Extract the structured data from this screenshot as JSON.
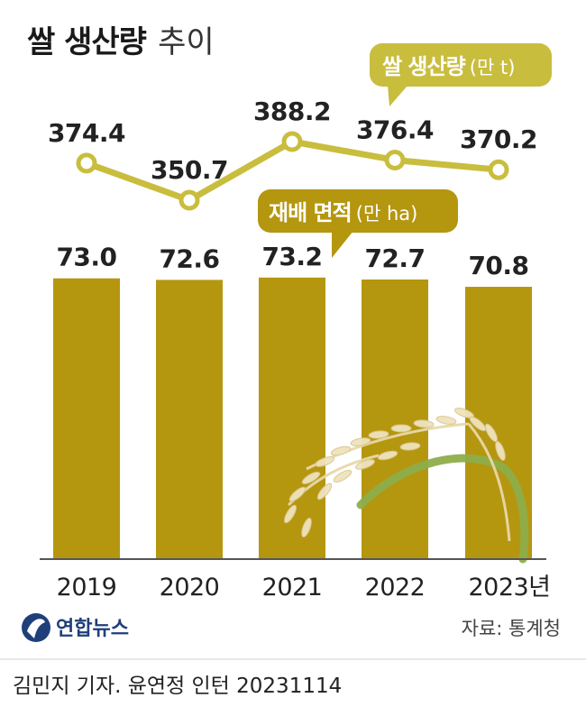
{
  "title": {
    "main": "쌀 생산량",
    "sub": "추이"
  },
  "chart_data": [
    {
      "type": "line",
      "title": "쌀 생산량",
      "unit": "(만 t)",
      "categories": [
        "2019",
        "2020",
        "2021",
        "2022",
        "2023"
      ],
      "values": [
        374.4,
        350.7,
        388.2,
        376.4,
        370.2
      ],
      "color": "#c9bd3e"
    },
    {
      "type": "bar",
      "title": "재배 면적",
      "unit": "(만 ha)",
      "categories": [
        "2019",
        "2020",
        "2021",
        "2022",
        "2023"
      ],
      "values": [
        73.0,
        72.6,
        73.2,
        72.7,
        70.8
      ],
      "color": "#b5960f"
    }
  ],
  "x_tick_labels": [
    "2019",
    "2020",
    "2021",
    "2022",
    "2023년"
  ],
  "logo_text": "연합뉴스",
  "source": "자료: 통계청",
  "credit": "김민지 기자. 윤연정 인턴  20231114"
}
